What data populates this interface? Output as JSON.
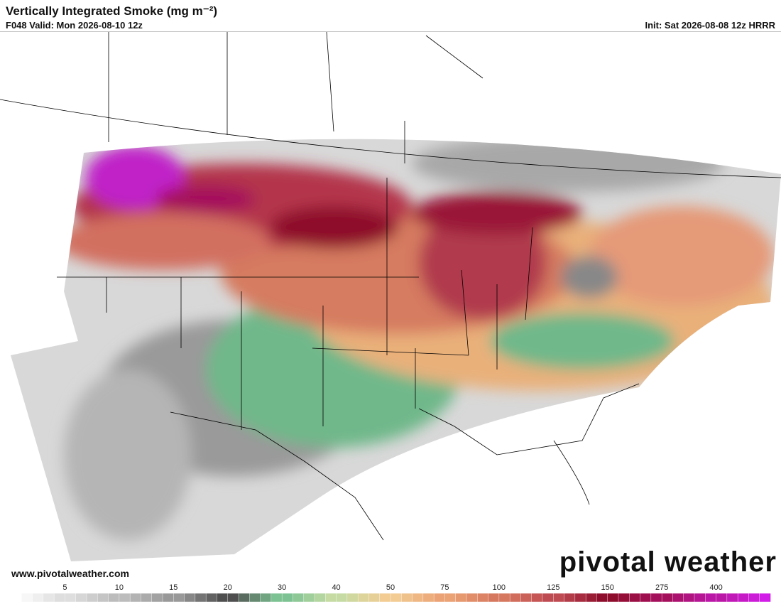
{
  "header": {
    "title": "Vertically Integrated Smoke (mg m⁻²)",
    "valid": "F048 Valid: Mon 2026-08-10 12z",
    "init": "Init: Sat 2026-08-08 12z HRRR"
  },
  "footer": {
    "website": "www.pivotalweather.com",
    "logo": "pivotal weather"
  },
  "colorbar": {
    "labels": [
      5,
      10,
      15,
      20,
      30,
      40,
      50,
      75,
      100,
      125,
      150,
      275,
      400
    ],
    "colors": [
      "#ffffff",
      "#dedede",
      "#bcbcbc",
      "#999999",
      "#4f4f4f",
      "#7cc292",
      "#c5dba3",
      "#f2cc93",
      "#eba274",
      "#d6785f",
      "#bf4b52",
      "#8e0d2c",
      "#a5105c",
      "#bb17a6",
      "#d21de8"
    ]
  }
}
